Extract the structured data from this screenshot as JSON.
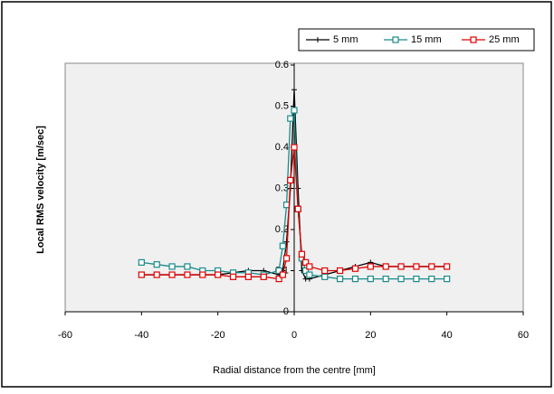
{
  "chart_data": {
    "type": "line",
    "xlabel": "Radial distance from the centre [mm]",
    "ylabel": "Local RMS velocity [m/sec]",
    "x": [
      -40,
      -36,
      -32,
      -28,
      -24,
      -20,
      -16,
      -12,
      -8,
      -4,
      -3,
      -2,
      -1,
      0,
      1,
      2,
      3,
      4,
      8,
      12,
      16,
      20,
      24,
      28,
      32,
      36,
      40
    ],
    "series": [
      {
        "name": "5 mm",
        "color": "#000000",
        "marker": "plus",
        "values": [
          0.09,
          0.09,
          0.09,
          0.09,
          0.09,
          0.09,
          0.095,
          0.1,
          0.1,
          0.09,
          0.1,
          0.17,
          0.3,
          0.54,
          0.3,
          0.1,
          0.08,
          0.08,
          0.09,
          0.1,
          0.11,
          0.12,
          0.11,
          0.11,
          0.11,
          0.11,
          0.11
        ]
      },
      {
        "name": "15 mm",
        "color": "#1a8a8a",
        "marker": "square",
        "values": [
          0.12,
          0.115,
          0.11,
          0.11,
          0.1,
          0.1,
          0.095,
          0.095,
          0.09,
          0.1,
          0.16,
          0.26,
          0.47,
          0.49,
          0.25,
          0.13,
          0.1,
          0.09,
          0.085,
          0.08,
          0.08,
          0.08,
          0.08,
          0.08,
          0.08,
          0.08,
          0.08
        ]
      },
      {
        "name": "25 mm",
        "color": "#e00000",
        "marker": "square",
        "values": [
          0.09,
          0.09,
          0.09,
          0.09,
          0.09,
          0.09,
          0.085,
          0.085,
          0.085,
          0.08,
          0.09,
          0.13,
          0.32,
          0.4,
          0.25,
          0.14,
          0.12,
          0.11,
          0.1,
          0.1,
          0.105,
          0.11,
          0.11,
          0.11,
          0.11,
          0.11,
          0.11
        ]
      }
    ],
    "xlim": [
      -60,
      60
    ],
    "xticks": [
      -60,
      -40,
      -20,
      0,
      20,
      40,
      60
    ],
    "ylim": [
      0,
      0.6
    ],
    "yticks": [
      0,
      0.1,
      0.2,
      0.3,
      0.4,
      0.5,
      0.6
    ],
    "legend": "top-right"
  }
}
